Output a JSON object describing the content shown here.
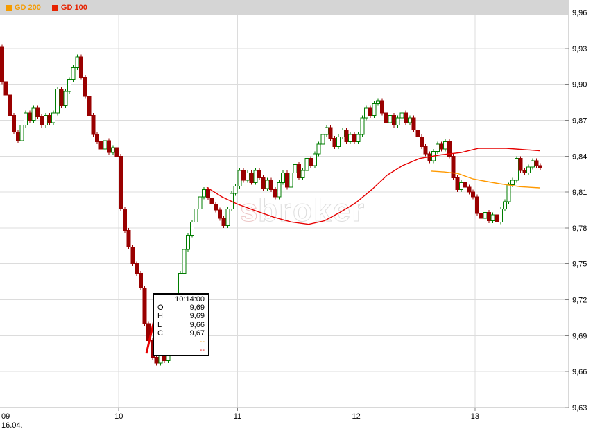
{
  "legend": {
    "items": [
      {
        "label": "GD 200",
        "color": "#f59b00"
      },
      {
        "label": "GD 100",
        "color": "#e62200"
      }
    ]
  },
  "watermark": {
    "prefix": "s",
    "word": "broker"
  },
  "tooltip": {
    "time": "10:14:00",
    "rows": [
      {
        "label": "O",
        "value": "9,69"
      },
      {
        "label": "H",
        "value": "9,69"
      },
      {
        "label": "L",
        "value": "9,66"
      },
      {
        "label": "C",
        "value": "9,67"
      }
    ],
    "dashes": [
      {
        "text": "--",
        "color": "#f59b00"
      },
      {
        "text": "--",
        "color": "#e60000"
      }
    ]
  },
  "chart_data": {
    "type": "candlestick",
    "title": "",
    "y_axis": {
      "min": 9.63,
      "max": 9.96,
      "step": 0.03,
      "labels": [
        "9,96",
        "9,93",
        "9,90",
        "9,87",
        "9,84",
        "9,81",
        "9,78",
        "9,75",
        "9,72",
        "9,69",
        "9,66",
        "9,63"
      ]
    },
    "x_axis": {
      "labels": [
        "09",
        "10",
        "11",
        "12",
        "13"
      ],
      "sub_label": "16.04."
    },
    "first_open": 9.931,
    "wick": 0.002,
    "colors": {
      "up_stroke": "#007d00",
      "up_fill": "#ffffff",
      "down": "#990000",
      "grid": "#dcdcdc",
      "axis": "#b0b0b0",
      "tick": "#808080",
      "label": "#000000"
    },
    "days": [
      {
        "label": "09",
        "closes": [
          9.902,
          9.891,
          9.874,
          9.86,
          9.853,
          9.866,
          9.876,
          9.87,
          9.88,
          9.873,
          9.866,
          9.874,
          9.868,
          9.876,
          9.896,
          9.882,
          9.894,
          9.904,
          9.914,
          9.923,
          9.906,
          9.89,
          9.874,
          9.858,
          9.852,
          9.846,
          9.853,
          9.843,
          9.847,
          9.84
        ]
      },
      {
        "label": "10",
        "closes": [
          9.796,
          9.778,
          9.764,
          9.75,
          9.742,
          9.73,
          9.7,
          9.686,
          9.672,
          9.667,
          9.676,
          9.669,
          9.68,
          9.7,
          9.72,
          9.742,
          9.762,
          9.774,
          9.785,
          9.796,
          9.806,
          9.812,
          9.805,
          9.8,
          9.795,
          9.788,
          9.782,
          9.796,
          9.809,
          9.815
        ]
      },
      {
        "label": "11",
        "closes": [
          9.828,
          9.82,
          9.826,
          9.818,
          9.828,
          9.822,
          9.813,
          9.82,
          9.812,
          9.806,
          9.818,
          9.826,
          9.814,
          9.826,
          9.833,
          9.822,
          9.828,
          9.838,
          9.832,
          9.842,
          9.85,
          9.858,
          9.864,
          9.855,
          9.848,
          9.856,
          9.862,
          9.852,
          9.858,
          9.852
        ]
      },
      {
        "label": "12",
        "closes": [
          9.858,
          9.872,
          9.88,
          9.874,
          9.884,
          9.886,
          9.876,
          9.868,
          9.874,
          9.866,
          9.872,
          9.876,
          9.868,
          9.872,
          9.862,
          9.856,
          9.848,
          9.842,
          9.836,
          9.844,
          9.85,
          9.846,
          9.852,
          9.84,
          9.822,
          9.812,
          9.818,
          9.814,
          9.81,
          9.806
        ]
      },
      {
        "label": "13",
        "closes": [
          9.792,
          9.788,
          9.793,
          9.786,
          9.791,
          9.785,
          9.796,
          9.802,
          9.816,
          9.82,
          9.838,
          9.828,
          9.826,
          9.831,
          9.836,
          9.832,
          9.83
        ]
      }
    ],
    "series": [
      {
        "name": "GD 100",
        "color": "#e60000",
        "points": [
          [
            298,
            9.814
          ],
          [
            320,
            9.806
          ],
          [
            342,
            9.8
          ],
          [
            370,
            9.794
          ],
          [
            395,
            9.789
          ],
          [
            420,
            9.785
          ],
          [
            445,
            9.783
          ],
          [
            468,
            9.786
          ],
          [
            490,
            9.793
          ],
          [
            513,
            9.801
          ],
          [
            536,
            9.812
          ],
          [
            558,
            9.824
          ],
          [
            580,
            9.832
          ],
          [
            605,
            9.838
          ],
          [
            635,
            9.841
          ],
          [
            665,
            9.843
          ],
          [
            690,
            9.8465
          ],
          [
            730,
            9.8465
          ],
          [
            778,
            9.8445
          ]
        ]
      },
      {
        "name": "GD 200",
        "color": "#ff9900",
        "points": [
          [
            622,
            9.8275
          ],
          [
            640,
            9.8268
          ],
          [
            660,
            9.8255
          ],
          [
            682,
            9.821
          ],
          [
            700,
            9.819
          ],
          [
            720,
            9.817
          ],
          [
            750,
            9.8145
          ],
          [
            778,
            9.8135
          ]
        ]
      }
    ],
    "callout_line": {
      "x1": 211,
      "y1": 510,
      "x2": 222,
      "y2": 463,
      "color": "#e60000"
    }
  }
}
